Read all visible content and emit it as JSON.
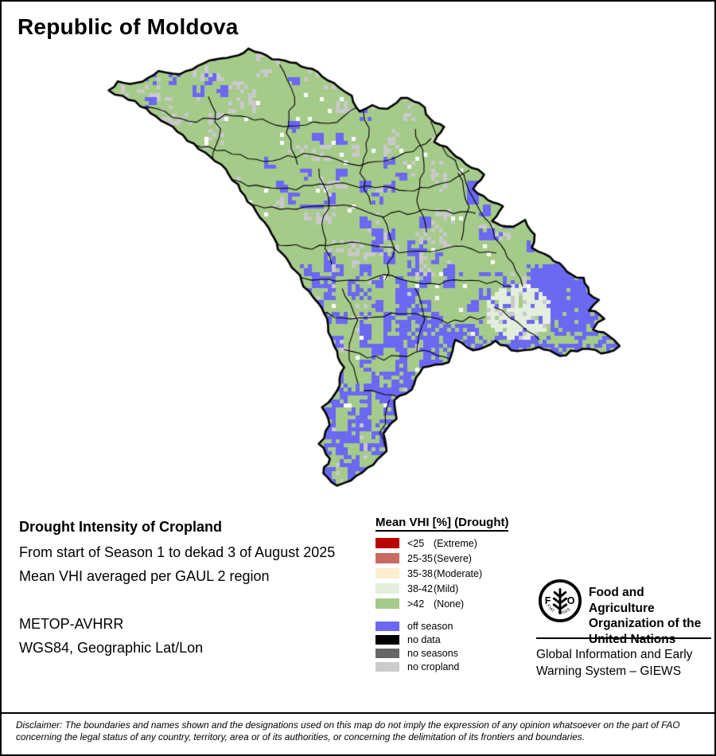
{
  "title": "Republic of Moldova",
  "info": {
    "heading": "Drought Intensity of Cropland",
    "period": "From start of Season 1 to dekad 3 of August 2025",
    "method": "Mean VHI averaged per GAUL 2 region",
    "sensor": "METOP-AVHRR",
    "projection": "WGS84, Geographic Lat/Lon"
  },
  "legend": {
    "title": "Mean VHI [%] (Drought)",
    "classes": [
      {
        "range": "<25",
        "severity": "(Extreme)",
        "color": "#bb0000"
      },
      {
        "range": "25-35",
        "severity": "(Severe)",
        "color": "#c96a63"
      },
      {
        "range": "35-38",
        "severity": "(Moderate)",
        "color": "#fdeecd"
      },
      {
        "range": "38-42",
        "severity": "(Mild)",
        "color": "#e3eedd"
      },
      {
        "range": ">42",
        "severity": "(None)",
        "color": "#a5cb8a"
      }
    ],
    "extra": [
      {
        "label": "off season",
        "color": "#6b68f2"
      },
      {
        "label": "no data",
        "color": "#000000"
      },
      {
        "label": "no seasons",
        "color": "#666666"
      },
      {
        "label": "no cropland",
        "color": "#cccccc"
      }
    ]
  },
  "org": {
    "fao_name": "Food and Agriculture\nOrganization of the\nUnited Nations",
    "giews": "Global Information and Early\nWarning System – GIEWS",
    "logo": {
      "left_letter": "F",
      "right_letter": "O",
      "motto": "FIAT · PANIS"
    }
  },
  "disclaimer": "Disclaimer: The boundaries and names shown and the designations used on this map do not imply the expression of any opinion whatsoever on the part of FAO\nconcerning the legal status of any country, territory, area or of its authorities, or concerning the delimitation of its frontiers and boundaries."
}
